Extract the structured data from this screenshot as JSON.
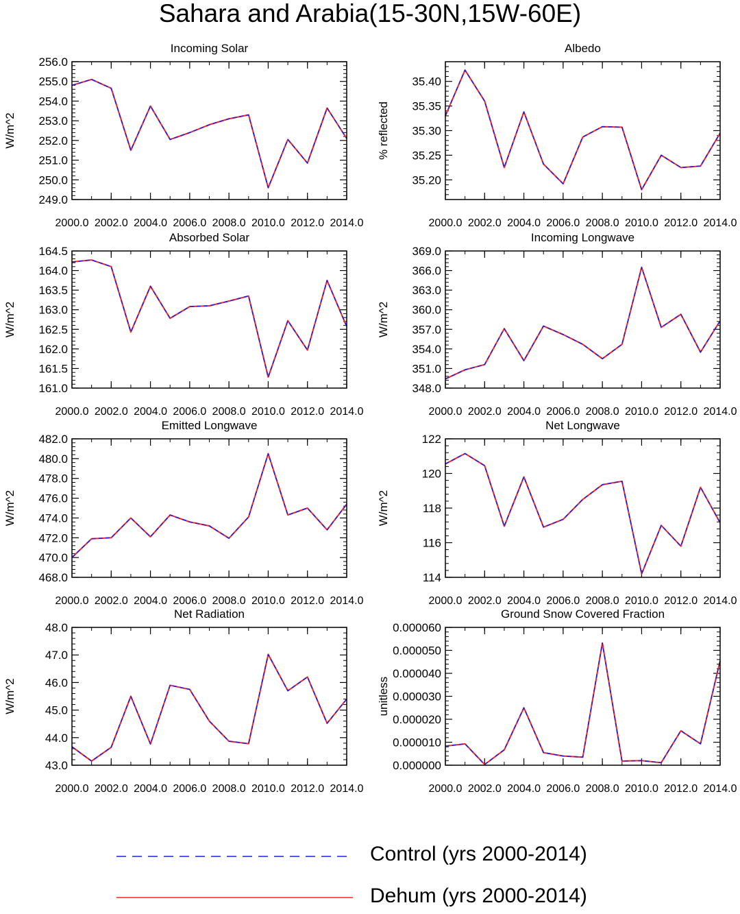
{
  "figure": {
    "title": "Sahara and Arabia(15-30N,15W-60E)"
  },
  "styles": {
    "control_color": "#1f1fe0",
    "dehum_color": "#ff2020"
  },
  "legend": {
    "control_label": "Control (yrs 2000-2014)",
    "dehum_label": "Dehum (yrs 2000-2014)"
  },
  "chart_data": [
    {
      "type": "line",
      "title": "Incoming Solar",
      "ylabel": "W/m^2",
      "xlabel": "",
      "x": [
        2000,
        2001,
        2002,
        2003,
        2004,
        2005,
        2006,
        2007,
        2008,
        2009,
        2010,
        2011,
        2012,
        2013,
        2014
      ],
      "xlim": [
        2000,
        2014
      ],
      "xticks": [
        2000,
        2002,
        2004,
        2006,
        2008,
        2010,
        2012,
        2014
      ],
      "xtick_labels": [
        "2000.0",
        "2002.0",
        "2004.0",
        "2006.0",
        "2008.0",
        "2010.0",
        "2012.0",
        "2014.0"
      ],
      "ylim": [
        249,
        256
      ],
      "yticks": [
        249,
        250,
        251,
        252,
        253,
        254,
        255,
        256
      ],
      "ytick_labels": [
        "249.0",
        "250.0",
        "251.0",
        "252.0",
        "253.0",
        "254.0",
        "255.0",
        "256.0"
      ],
      "series": [
        {
          "name": "Control (yrs 2000-2014)",
          "values": [
            254.8,
            255.1,
            254.65,
            251.5,
            253.75,
            252.05,
            252.4,
            252.8,
            253.1,
            253.3,
            249.6,
            252.05,
            250.85,
            253.65,
            252.1
          ]
        },
        {
          "name": "Dehum (yrs 2000-2014)",
          "values": [
            254.8,
            255.1,
            254.65,
            251.5,
            253.75,
            252.05,
            252.4,
            252.8,
            253.1,
            253.3,
            249.6,
            252.05,
            250.85,
            253.65,
            252.1
          ]
        }
      ]
    },
    {
      "type": "line",
      "title": "Albedo",
      "ylabel": "% reflected",
      "xlabel": "",
      "x": [
        2000,
        2001,
        2002,
        2003,
        2004,
        2005,
        2006,
        2007,
        2008,
        2009,
        2010,
        2011,
        2012,
        2013,
        2014
      ],
      "xlim": [
        2000,
        2014
      ],
      "xticks": [
        2000,
        2002,
        2004,
        2006,
        2008,
        2010,
        2012,
        2014
      ],
      "xtick_labels": [
        "2000.0",
        "2002.0",
        "2004.0",
        "2006.0",
        "2008.0",
        "2010.0",
        "2012.0",
        "2014.0"
      ],
      "ylim": [
        35.16,
        35.44
      ],
      "yticks": [
        35.2,
        35.25,
        35.3,
        35.35,
        35.4
      ],
      "ytick_labels": [
        "35.20",
        "35.25",
        "35.30",
        "35.35",
        "35.40"
      ],
      "series": [
        {
          "name": "Control (yrs 2000-2014)",
          "values": [
            35.33,
            35.423,
            35.36,
            35.225,
            35.338,
            35.232,
            35.192,
            35.287,
            35.308,
            35.307,
            35.18,
            35.25,
            35.225,
            35.228,
            35.295
          ]
        },
        {
          "name": "Dehum (yrs 2000-2014)",
          "values": [
            35.33,
            35.423,
            35.36,
            35.225,
            35.338,
            35.232,
            35.192,
            35.287,
            35.308,
            35.307,
            35.18,
            35.25,
            35.225,
            35.228,
            35.295
          ]
        }
      ]
    },
    {
      "type": "line",
      "title": "Absorbed Solar",
      "ylabel": "W/m^2",
      "xlabel": "",
      "x": [
        2000,
        2001,
        2002,
        2003,
        2004,
        2005,
        2006,
        2007,
        2008,
        2009,
        2010,
        2011,
        2012,
        2013,
        2014
      ],
      "xlim": [
        2000,
        2014
      ],
      "xticks": [
        2000,
        2002,
        2004,
        2006,
        2008,
        2010,
        2012,
        2014
      ],
      "xtick_labels": [
        "2000.0",
        "2002.0",
        "2004.0",
        "2006.0",
        "2008.0",
        "2010.0",
        "2012.0",
        "2014.0"
      ],
      "ylim": [
        161,
        164.5
      ],
      "yticks": [
        161,
        161.5,
        162,
        162.5,
        163,
        163.5,
        164,
        164.5
      ],
      "ytick_labels": [
        "161.0",
        "161.5",
        "162.0",
        "162.5",
        "163.0",
        "163.5",
        "164.0",
        "164.5"
      ],
      "series": [
        {
          "name": "Control (yrs 2000-2014)",
          "values": [
            164.22,
            164.27,
            164.1,
            162.43,
            163.6,
            162.78,
            163.08,
            163.1,
            163.22,
            163.35,
            161.28,
            162.72,
            161.97,
            163.75,
            162.57
          ]
        },
        {
          "name": "Dehum (yrs 2000-2014)",
          "values": [
            164.22,
            164.27,
            164.1,
            162.43,
            163.6,
            162.78,
            163.08,
            163.1,
            163.22,
            163.35,
            161.28,
            162.72,
            161.97,
            163.75,
            162.57
          ]
        }
      ]
    },
    {
      "type": "line",
      "title": "Incoming Longwave",
      "ylabel": "W/m^2",
      "xlabel": "",
      "x": [
        2000,
        2001,
        2002,
        2003,
        2004,
        2005,
        2006,
        2007,
        2008,
        2009,
        2010,
        2011,
        2012,
        2013,
        2014
      ],
      "xlim": [
        2000,
        2014
      ],
      "xticks": [
        2000,
        2002,
        2004,
        2006,
        2008,
        2010,
        2012,
        2014
      ],
      "xtick_labels": [
        "2000.0",
        "2002.0",
        "2004.0",
        "2006.0",
        "2008.0",
        "2010.0",
        "2012.0",
        "2014.0"
      ],
      "ylim": [
        348,
        369
      ],
      "yticks": [
        348,
        351,
        354,
        357,
        360,
        363,
        366,
        369
      ],
      "ytick_labels": [
        "348.0",
        "351.0",
        "354.0",
        "357.0",
        "360.0",
        "363.0",
        "366.0",
        "369.0"
      ],
      "series": [
        {
          "name": "Control (yrs 2000-2014)",
          "values": [
            349.4,
            350.8,
            351.6,
            357.1,
            352.2,
            357.5,
            356.2,
            354.7,
            352.5,
            354.7,
            366.5,
            357.3,
            359.3,
            353.5,
            358.3
          ]
        },
        {
          "name": "Dehum (yrs 2000-2014)",
          "values": [
            349.4,
            350.8,
            351.6,
            357.1,
            352.2,
            357.5,
            356.2,
            354.7,
            352.5,
            354.7,
            366.5,
            357.3,
            359.3,
            353.5,
            358.3
          ]
        }
      ]
    },
    {
      "type": "line",
      "title": "Emitted Longwave",
      "ylabel": "W/m^2",
      "xlabel": "",
      "x": [
        2000,
        2001,
        2002,
        2003,
        2004,
        2005,
        2006,
        2007,
        2008,
        2009,
        2010,
        2011,
        2012,
        2013,
        2014
      ],
      "xlim": [
        2000,
        2014
      ],
      "xticks": [
        2000,
        2002,
        2004,
        2006,
        2008,
        2010,
        2012,
        2014
      ],
      "xtick_labels": [
        "2000.0",
        "2002.0",
        "2004.0",
        "2006.0",
        "2008.0",
        "2010.0",
        "2012.0",
        "2014.0"
      ],
      "ylim": [
        468,
        482
      ],
      "yticks": [
        468,
        470,
        472,
        474,
        476,
        478,
        480,
        482
      ],
      "ytick_labels": [
        "468.0",
        "470.0",
        "472.0",
        "474.0",
        "476.0",
        "478.0",
        "480.0",
        "482.0"
      ],
      "series": [
        {
          "name": "Control (yrs 2000-2014)",
          "values": [
            470.0,
            471.9,
            472.0,
            474.0,
            472.1,
            474.3,
            473.6,
            473.2,
            471.95,
            474.1,
            480.5,
            474.3,
            475.0,
            472.8,
            475.4
          ]
        },
        {
          "name": "Dehum (yrs 2000-2014)",
          "values": [
            470.0,
            471.9,
            472.0,
            474.0,
            472.1,
            474.3,
            473.6,
            473.2,
            471.95,
            474.1,
            480.5,
            474.3,
            475.0,
            472.8,
            475.4
          ]
        }
      ]
    },
    {
      "type": "line",
      "title": "Net Longwave",
      "ylabel": "W/m^2",
      "xlabel": "",
      "x": [
        2000,
        2001,
        2002,
        2003,
        2004,
        2005,
        2006,
        2007,
        2008,
        2009,
        2010,
        2011,
        2012,
        2013,
        2014
      ],
      "xlim": [
        2000,
        2014
      ],
      "xticks": [
        2000,
        2002,
        2004,
        2006,
        2008,
        2010,
        2012,
        2014
      ],
      "xtick_labels": [
        "2000.0",
        "2002.0",
        "2004.0",
        "2006.0",
        "2008.0",
        "2010.0",
        "2012.0",
        "2014.0"
      ],
      "ylim": [
        114,
        122
      ],
      "yticks": [
        114,
        116,
        118,
        120,
        122
      ],
      "ytick_labels": [
        "114",
        "116",
        "118",
        "120",
        "122"
      ],
      "series": [
        {
          "name": "Control (yrs 2000-2014)",
          "values": [
            120.55,
            121.15,
            120.45,
            116.95,
            119.8,
            116.9,
            117.35,
            118.5,
            119.35,
            119.55,
            114.2,
            117.0,
            115.8,
            119.2,
            117.15
          ]
        },
        {
          "name": "Dehum (yrs 2000-2014)",
          "values": [
            120.55,
            121.15,
            120.45,
            116.95,
            119.8,
            116.9,
            117.35,
            118.5,
            119.35,
            119.55,
            114.2,
            117.0,
            115.8,
            119.2,
            117.15
          ]
        }
      ]
    },
    {
      "type": "line",
      "title": "Net Radiation",
      "ylabel": "W/m^2",
      "xlabel": "",
      "x": [
        2000,
        2001,
        2002,
        2003,
        2004,
        2005,
        2006,
        2007,
        2008,
        2009,
        2010,
        2011,
        2012,
        2013,
        2014
      ],
      "xlim": [
        2000,
        2014
      ],
      "xticks": [
        2000,
        2002,
        2004,
        2006,
        2008,
        2010,
        2012,
        2014
      ],
      "xtick_labels": [
        "2000.0",
        "2002.0",
        "2004.0",
        "2006.0",
        "2008.0",
        "2010.0",
        "2012.0",
        "2014.0"
      ],
      "ylim": [
        43,
        48
      ],
      "yticks": [
        43,
        44,
        45,
        46,
        47,
        48
      ],
      "ytick_labels": [
        "43.0",
        "44.0",
        "45.0",
        "46.0",
        "47.0",
        "48.0"
      ],
      "series": [
        {
          "name": "Control (yrs 2000-2014)",
          "values": [
            43.67,
            43.15,
            43.65,
            45.5,
            43.77,
            45.9,
            45.75,
            44.6,
            43.87,
            43.78,
            47.02,
            45.7,
            46.2,
            44.52,
            45.4
          ]
        },
        {
          "name": "Dehum (yrs 2000-2014)",
          "values": [
            43.67,
            43.15,
            43.65,
            45.5,
            43.77,
            45.9,
            45.75,
            44.6,
            43.87,
            43.78,
            47.02,
            45.7,
            46.2,
            44.52,
            45.4
          ]
        }
      ]
    },
    {
      "type": "line",
      "title": "Ground Snow Covered Fraction",
      "ylabel": "unitless",
      "xlabel": "",
      "x": [
        2000,
        2001,
        2002,
        2003,
        2004,
        2005,
        2006,
        2007,
        2008,
        2009,
        2010,
        2011,
        2012,
        2013,
        2014
      ],
      "xlim": [
        2000,
        2014
      ],
      "xticks": [
        2000,
        2002,
        2004,
        2006,
        2008,
        2010,
        2012,
        2014
      ],
      "xtick_labels": [
        "2000.0",
        "2002.0",
        "2004.0",
        "2006.0",
        "2008.0",
        "2010.0",
        "2012.0",
        "2014.0"
      ],
      "ylim": [
        0,
        6e-05
      ],
      "yticks": [
        0,
        1e-05,
        2e-05,
        3e-05,
        4e-05,
        5e-05,
        6e-05
      ],
      "ytick_labels": [
        "0.000000",
        "0.000010",
        "0.000020",
        "0.000030",
        "0.000040",
        "0.000050",
        "0.000060"
      ],
      "series": [
        {
          "name": "Control (yrs 2000-2014)",
          "values": [
            8.3e-06,
            9.3e-06,
            3e-07,
            6.7e-06,
            2.5e-05,
            5.5e-06,
            4e-06,
            3.5e-06,
            5.32e-05,
            1.8e-06,
            2e-06,
            1.1e-06,
            1.5e-05,
            9.3e-06,
            4.55e-05
          ]
        },
        {
          "name": "Dehum (yrs 2000-2014)",
          "values": [
            8.3e-06,
            9.3e-06,
            3e-07,
            6.7e-06,
            2.5e-05,
            5.5e-06,
            4e-06,
            3.5e-06,
            5.32e-05,
            1.8e-06,
            2e-06,
            1.1e-06,
            1.5e-05,
            9.3e-06,
            4.55e-05
          ]
        }
      ]
    }
  ]
}
